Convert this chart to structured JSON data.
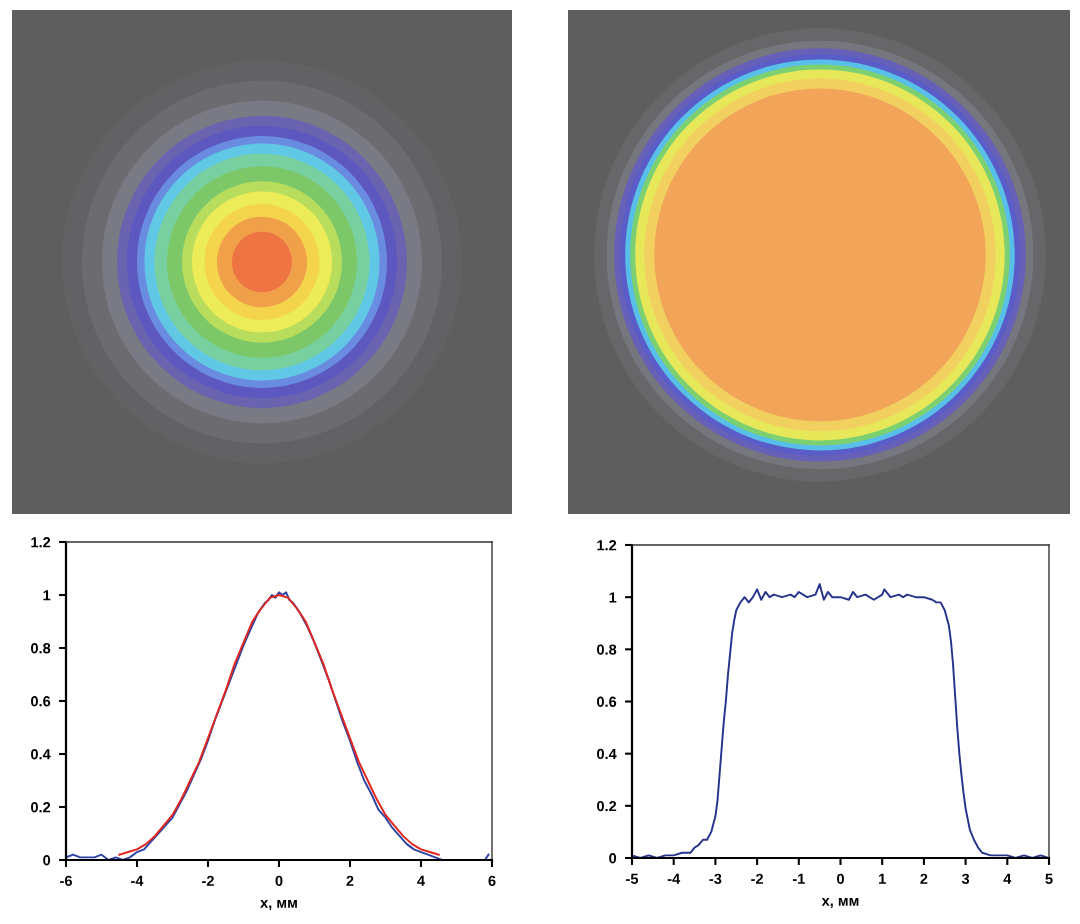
{
  "chart_data": [
    {
      "type": "line",
      "xlabel": "x, мм",
      "xlim": [
        -6,
        6
      ],
      "xticks": [
        -6,
        -4,
        -2,
        0,
        2,
        4,
        6
      ],
      "ylim": [
        0,
        1.2
      ],
      "yticks": [
        0,
        0.2,
        0.4,
        0.6,
        0.8,
        1,
        1.2
      ],
      "series": [
        {
          "color": "#2f44a4",
          "x": [
            -6,
            -5.8,
            -5.6,
            -5.4,
            -5.2,
            -5,
            -4.8,
            -4.6,
            -4.4,
            -4.2,
            -4,
            -3.8,
            -3.6,
            -3.4,
            -3.2,
            -3,
            -2.8,
            -2.6,
            -2.4,
            -2.2,
            -2,
            -1.8,
            -1.6,
            -1.4,
            -1.2,
            -1,
            -0.8,
            -0.6,
            -0.4,
            -0.3,
            -0.2,
            -0.1,
            0,
            0.1,
            0.2,
            0.3,
            0.4,
            0.6,
            0.8,
            1,
            1.2,
            1.4,
            1.6,
            1.8,
            2,
            2.2,
            2.4,
            2.6,
            2.8,
            3,
            3.2,
            3.4,
            3.6,
            3.8,
            4,
            4.2,
            4.4,
            4.6,
            4.8,
            5,
            5.2,
            5.4,
            5.6,
            5.8,
            5.9
          ],
          "values": [
            0.01,
            0.02,
            0.01,
            0.01,
            0.01,
            0.02,
            0.0,
            0.01,
            0.0,
            0.01,
            0.03,
            0.04,
            0.07,
            0.1,
            0.13,
            0.16,
            0.21,
            0.26,
            0.32,
            0.38,
            0.45,
            0.53,
            0.6,
            0.67,
            0.74,
            0.81,
            0.87,
            0.93,
            0.97,
            0.98,
            1.0,
            0.99,
            1.01,
            1.0,
            1.01,
            0.98,
            0.97,
            0.93,
            0.88,
            0.82,
            0.75,
            0.68,
            0.6,
            0.52,
            0.45,
            0.37,
            0.3,
            0.25,
            0.19,
            0.16,
            0.12,
            0.09,
            0.06,
            0.04,
            0.03,
            0.02,
            0.01,
            0.0,
            0.0,
            0.0,
            0.0,
            0.0,
            0.0,
            0.0,
            0.02
          ]
        },
        {
          "color": "#e3261f",
          "x": [
            -4.5,
            -4.25,
            -4,
            -3.75,
            -3.5,
            -3.25,
            -3,
            -2.75,
            -2.5,
            -2.25,
            -2,
            -1.75,
            -1.5,
            -1.25,
            -1,
            -0.75,
            -0.5,
            -0.25,
            0,
            0.25,
            0.5,
            0.75,
            1,
            1.25,
            1.5,
            1.75,
            2,
            2.25,
            2.5,
            2.75,
            3,
            3.25,
            3.5,
            3.75,
            4,
            4.25,
            4.5
          ],
          "values": [
            0.02,
            0.03,
            0.04,
            0.06,
            0.09,
            0.13,
            0.17,
            0.23,
            0.3,
            0.37,
            0.46,
            0.55,
            0.64,
            0.74,
            0.82,
            0.9,
            0.95,
            0.99,
            1.0,
            0.99,
            0.95,
            0.9,
            0.82,
            0.74,
            0.64,
            0.55,
            0.46,
            0.37,
            0.3,
            0.23,
            0.17,
            0.13,
            0.09,
            0.06,
            0.04,
            0.03,
            0.02
          ]
        }
      ]
    },
    {
      "type": "line",
      "xlabel": "x, мм",
      "xlim": [
        -5,
        5
      ],
      "xticks": [
        -5,
        -4,
        -3,
        -2,
        -1,
        0,
        1,
        2,
        3,
        4,
        5
      ],
      "ylim": [
        0,
        1.2
      ],
      "yticks": [
        0,
        0.2,
        0.4,
        0.6,
        0.8,
        1,
        1.2
      ],
      "series": [
        {
          "color": "#26348c",
          "x": [
            -5,
            -4.8,
            -4.6,
            -4.4,
            -4.2,
            -4,
            -3.8,
            -3.6,
            -3.5,
            -3.4,
            -3.3,
            -3.2,
            -3.1,
            -3,
            -2.95,
            -2.9,
            -2.85,
            -2.8,
            -2.75,
            -2.7,
            -2.65,
            -2.6,
            -2.55,
            -2.5,
            -2.4,
            -2.3,
            -2.2,
            -2.1,
            -2,
            -1.9,
            -1.8,
            -1.7,
            -1.6,
            -1.4,
            -1.2,
            -1.1,
            -1,
            -0.8,
            -0.6,
            -0.5,
            -0.4,
            -0.3,
            -0.2,
            0,
            0.2,
            0.3,
            0.4,
            0.6,
            0.8,
            1,
            1.05,
            1.2,
            1.4,
            1.5,
            1.6,
            1.8,
            2,
            2.2,
            2.3,
            2.4,
            2.5,
            2.6,
            2.65,
            2.7,
            2.75,
            2.8,
            2.85,
            2.9,
            2.95,
            3,
            3.1,
            3.2,
            3.3,
            3.4,
            3.6,
            3.8,
            4,
            4.2,
            4.4,
            4.6,
            4.8,
            5
          ],
          "values": [
            0.01,
            0.0,
            0.01,
            0.0,
            0.01,
            0.01,
            0.02,
            0.02,
            0.04,
            0.05,
            0.07,
            0.07,
            0.1,
            0.16,
            0.22,
            0.32,
            0.42,
            0.52,
            0.6,
            0.7,
            0.78,
            0.86,
            0.91,
            0.95,
            0.98,
            1.0,
            0.98,
            1.0,
            1.03,
            0.99,
            1.02,
            1.0,
            1.01,
            1.0,
            1.01,
            1.0,
            1.02,
            1.0,
            1.01,
            1.05,
            0.99,
            1.02,
            1.0,
            1.0,
            0.99,
            1.02,
            1.0,
            1.01,
            0.99,
            1.01,
            1.03,
            1.0,
            1.01,
            1.0,
            1.01,
            1.0,
            1.0,
            0.99,
            0.98,
            0.98,
            0.95,
            0.89,
            0.83,
            0.74,
            0.62,
            0.5,
            0.4,
            0.32,
            0.25,
            0.19,
            0.11,
            0.07,
            0.04,
            0.02,
            0.01,
            0.01,
            0.01,
            0.0,
            0.01,
            0.0,
            0.01,
            0.0
          ]
        }
      ]
    }
  ]
}
